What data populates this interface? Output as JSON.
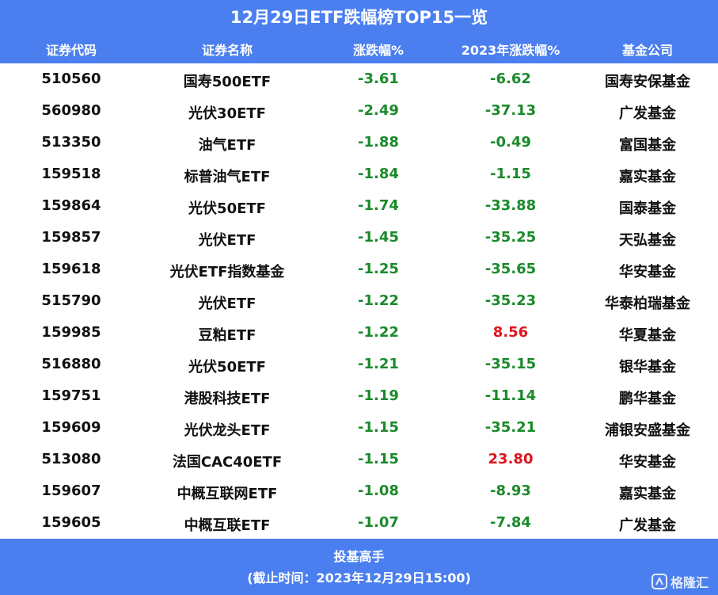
{
  "header": {
    "title": "12月29日ETF跌幅榜TOP15一览"
  },
  "table": {
    "columns": [
      "证券代码",
      "证券名称",
      "涨跌幅%",
      "2023年涨跌幅%",
      "基金公司"
    ],
    "rows": [
      [
        "510560",
        "国寿500ETF",
        "-3.61",
        "-6.62",
        "国寿安保基金"
      ],
      [
        "560980",
        "光伏30ETF",
        "-2.49",
        "-37.13",
        "广发基金"
      ],
      [
        "513350",
        "油气ETF",
        "-1.88",
        "-0.49",
        "富国基金"
      ],
      [
        "159518",
        "标普油气ETF",
        "-1.84",
        "-1.15",
        "嘉实基金"
      ],
      [
        "159864",
        "光伏50ETF",
        "-1.74",
        "-33.88",
        "国泰基金"
      ],
      [
        "159857",
        "光伏ETF",
        "-1.45",
        "-35.25",
        "天弘基金"
      ],
      [
        "159618",
        "光伏ETF指数基金",
        "-1.25",
        "-35.65",
        "华安基金"
      ],
      [
        "515790",
        "光伏ETF",
        "-1.22",
        "-35.23",
        "华泰柏瑞基金"
      ],
      [
        "159985",
        "豆粕ETF",
        "-1.22",
        "8.56",
        "华夏基金"
      ],
      [
        "516880",
        "光伏50ETF",
        "-1.21",
        "-35.15",
        "银华基金"
      ],
      [
        "159751",
        "港股科技ETF",
        "-1.19",
        "-11.14",
        "鹏华基金"
      ],
      [
        "159609",
        "光伏龙头ETF",
        "-1.15",
        "-35.21",
        "浦银安盛基金"
      ],
      [
        "513080",
        "法国CAC40ETF",
        "-1.15",
        "23.80",
        "华安基金"
      ],
      [
        "159607",
        "中概互联网ETF",
        "-1.08",
        "-8.93",
        "嘉实基金"
      ],
      [
        "159605",
        "中概互联ETF",
        "-1.07",
        "-7.84",
        "广发基金"
      ]
    ]
  },
  "footer": {
    "lines": [
      "投基高手",
      "(截止时间：2023年12月29日15:00)"
    ],
    "watermark": "格隆汇"
  }
}
